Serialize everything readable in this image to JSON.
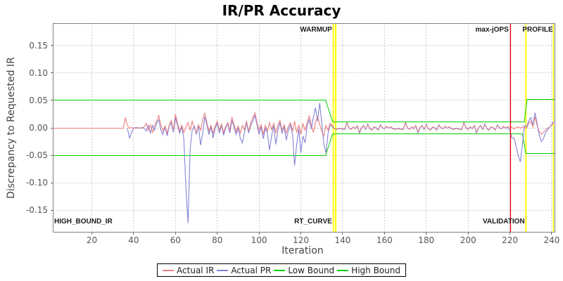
{
  "title": "IR/PR Accuracy",
  "chart_data": {
    "type": "line",
    "title": "IR/PR Accuracy",
    "xlabel": "Iteration",
    "ylabel": "Discrepancy to Requested IR",
    "xlim": [
      1.3,
      241.7
    ],
    "ylim": [
      -0.191,
      0.191
    ],
    "xticks": [
      20,
      40,
      60,
      80,
      100,
      120,
      140,
      160,
      180,
      200,
      220,
      240
    ],
    "yticks": [
      0.15,
      0.1,
      0.05,
      0.0,
      -0.05,
      -0.1,
      -0.15
    ],
    "grid": true,
    "grid_color": "#cccccc",
    "border_color": "#808080",
    "series": [
      {
        "name": "Actual IR",
        "color": "#f08080",
        "x_start": 1,
        "step": 1,
        "values": [
          0,
          0,
          0,
          0,
          0,
          0,
          0,
          0,
          0,
          0,
          0,
          0,
          0,
          0,
          0,
          0,
          0,
          0,
          0,
          0,
          0,
          0,
          0,
          0,
          0,
          0,
          0,
          0,
          0,
          0,
          0,
          0,
          0,
          0,
          0,
          0.018,
          0.004,
          0,
          0.001,
          -0.001,
          0,
          0.001,
          -0.001,
          0,
          0.002,
          0.008,
          -0.004,
          0.006,
          -0.008,
          0.004,
          0.012,
          0.022,
          0.006,
          -0.006,
          0.003,
          -0.009,
          0.005,
          0.014,
          -0.004,
          0.025,
          0.008,
          -0.006,
          0.004,
          -0.008,
          0.002,
          0.01,
          -0.005,
          0.012,
          0,
          -0.008,
          0.006,
          -0.004,
          0.015,
          0.028,
          0.01,
          -0.006,
          0.004,
          -0.01,
          0.003,
          0.012,
          -0.005,
          0.007,
          -0.008,
          0.002,
          0.01,
          -0.004,
          0.02,
          0.006,
          -0.007,
          0.003,
          -0.01,
          0.005,
          -0.003,
          0.012,
          -0.006,
          0.008,
          0.018,
          0.028,
          0.01,
          -0.005,
          0.006,
          -0.012,
          0.004,
          -0.006,
          0.01,
          -0.003,
          0.008,
          -0.009,
          0.004,
          0.014,
          -0.004,
          0.006,
          -0.01,
          0.002,
          0.009,
          -0.006,
          0.012,
          -0.008,
          0.005,
          -0.012,
          0.008,
          -0.004,
          0.01,
          0.022,
          0.004,
          -0.008,
          0.01,
          0.02,
          0.006,
          -0.006,
          -0.015,
          0.004,
          -0.005,
          0.008,
          0.004,
          -0.002,
          -0.002,
          -0.002,
          -0.001,
          -0.003,
          -0.002,
          0.009,
          0.001,
          -0.003,
          0.002,
          -0.002,
          0.004,
          -0.008,
          0.001,
          0.003,
          -0.002,
          0.006,
          -0.001,
          -0.004,
          0.002,
          0,
          -0.003,
          0.005,
          0.001,
          -0.002,
          0.003,
          -0.001,
          0.002,
          -0.002,
          -0.002,
          -0.002,
          -0.001,
          -0.003,
          -0.002,
          0.009,
          0.001,
          -0.003,
          0.002,
          -0.002,
          0.004,
          -0.008,
          0.001,
          0.003,
          -0.002,
          0.006,
          -0.001,
          -0.004,
          0.002,
          0,
          -0.003,
          0.005,
          0.001,
          -0.002,
          0.003,
          -0.001,
          0.002,
          -0.002,
          -0.002,
          -0.002,
          -0.001,
          -0.003,
          -0.002,
          0.009,
          0.001,
          -0.003,
          0.002,
          -0.002,
          0.004,
          -0.008,
          0.001,
          0.003,
          -0.002,
          0.006,
          -0.001,
          -0.004,
          0.002,
          0,
          -0.003,
          0.005,
          0.001,
          -0.002,
          0.003,
          -0.001,
          0.002,
          0.002,
          0.001,
          -0.002,
          0.001,
          0.002,
          -0.001,
          0.002,
          0.001,
          0,
          0.008,
          0.012,
          0.002,
          0.02,
          0.004,
          -0.006,
          -0.012,
          -0.008,
          -0.004,
          0,
          0.002,
          0.004,
          0.01
        ]
      },
      {
        "name": "Actual PR",
        "color": "#8080d8",
        "x_start": 1,
        "step": 1,
        "values": [
          null,
          null,
          null,
          null,
          null,
          null,
          null,
          null,
          null,
          null,
          null,
          null,
          null,
          null,
          null,
          null,
          null,
          null,
          null,
          null,
          null,
          null,
          null,
          null,
          null,
          null,
          null,
          null,
          null,
          null,
          null,
          null,
          null,
          null,
          null,
          null,
          0,
          -0.019,
          -0.008,
          0,
          0.001,
          -0.001,
          0,
          0.001,
          0,
          -0.006,
          0.005,
          -0.01,
          0.004,
          -0.004,
          0.008,
          0.015,
          -0.004,
          -0.012,
          0.002,
          -0.015,
          0.003,
          0.01,
          -0.008,
          0.018,
          0.004,
          -0.01,
          0.002,
          -0.02,
          -0.11,
          -0.174,
          -0.04,
          -0.004,
          0.003,
          -0.012,
          0.004,
          -0.032,
          -0.01,
          0.02,
          0.006,
          -0.012,
          0.002,
          -0.018,
          0,
          0.008,
          -0.01,
          0.004,
          -0.014,
          0,
          0.008,
          -0.01,
          0.014,
          0.002,
          -0.012,
          0,
          -0.018,
          -0.028,
          -0.008,
          0.01,
          -0.01,
          0.004,
          0.012,
          0.022,
          0.006,
          -0.012,
          0.002,
          -0.02,
          0,
          -0.01,
          -0.04,
          -0.015,
          0.004,
          -0.03,
          -0.005,
          0.01,
          -0.01,
          0.002,
          -0.022,
          -0.004,
          0.006,
          -0.012,
          -0.068,
          -0.03,
          -0.002,
          -0.045,
          -0.015,
          -0.028,
          0.004,
          0.015,
          -0.002,
          0.02,
          0.036,
          0.012,
          0.046,
          0.008,
          -0.03,
          -0.046,
          -0.01,
          0.006,
          0.002,
          -0.001,
          -0.003,
          -0.001,
          -0.002,
          -0.002,
          -0.003,
          0.01,
          0,
          -0.002,
          0.001,
          -0.001,
          0.003,
          -0.009,
          0,
          0.004,
          -0.003,
          0.007,
          -0.002,
          -0.003,
          0.001,
          0.001,
          -0.004,
          0.006,
          0,
          -0.001,
          0.002,
          0,
          0.001,
          -0.001,
          -0.003,
          -0.001,
          -0.002,
          -0.002,
          -0.003,
          0.01,
          0,
          -0.002,
          0.001,
          -0.001,
          0.003,
          -0.009,
          0,
          0.004,
          -0.003,
          0.007,
          -0.002,
          -0.003,
          0.001,
          0.001,
          -0.004,
          0.006,
          0,
          -0.001,
          0.002,
          0,
          0.001,
          -0.001,
          -0.003,
          -0.001,
          -0.002,
          -0.002,
          -0.003,
          0.01,
          0,
          -0.002,
          0.001,
          -0.001,
          0.003,
          -0.009,
          0,
          0.004,
          -0.003,
          0.007,
          -0.002,
          -0.003,
          0.001,
          0.001,
          -0.004,
          0.006,
          0,
          -0.001,
          0.002,
          0,
          0.001,
          -0.004,
          -0.018,
          -0.019,
          -0.034,
          -0.05,
          -0.062,
          -0.03,
          0.005,
          0.002,
          0.012,
          0.018,
          0.004,
          0.028,
          0.008,
          -0.012,
          -0.025,
          -0.02,
          -0.01,
          -0.004,
          0.002,
          0.006,
          0.012
        ]
      },
      {
        "name": "Low Bound",
        "color": "#00d000",
        "points": [
          [
            1.3,
            -0.05
          ],
          [
            131.8,
            -0.05
          ],
          [
            135.2,
            -0.0115
          ],
          [
            226.0,
            -0.0115
          ],
          [
            227.6,
            -0.047
          ],
          [
            241.7,
            -0.047
          ]
        ]
      },
      {
        "name": "High Bound",
        "color": "#00d000",
        "points": [
          [
            1.3,
            0.05
          ],
          [
            131.8,
            0.05
          ],
          [
            135.2,
            0.011
          ],
          [
            226.9,
            0.011
          ],
          [
            228.2,
            0.052
          ],
          [
            241.7,
            0.052
          ]
        ]
      }
    ],
    "markers": {
      "vbands": [
        {
          "name": "warmup-band-1",
          "x0": 135.2,
          "x1": 135.8,
          "color": "#ffff00"
        },
        {
          "name": "warmup-band-2",
          "x0": 136.3,
          "x1": 137.0,
          "color": "#ffff00"
        },
        {
          "name": "profile-band",
          "x0": 227.35,
          "x1": 227.95,
          "color": "#ffff00"
        },
        {
          "name": "right-edge-band",
          "x0": 240.55,
          "x1": 241.05,
          "color": "#ffff00"
        }
      ],
      "vlines": [
        {
          "name": "max-jops-line",
          "x": 220.3,
          "color": "#ee0000",
          "width": 1.3
        }
      ]
    },
    "annotations": [
      {
        "text": "WARMUP",
        "x": 134.9,
        "valign": "top",
        "align": "end"
      },
      {
        "text": "max-jOPS",
        "x": 219.4,
        "valign": "top",
        "align": "end"
      },
      {
        "text": "PROFILE",
        "x": 240.6,
        "valign": "top",
        "align": "end"
      },
      {
        "text": "HIGH_BOUND_IR",
        "x": 1.97,
        "valign": "bottom",
        "align": "start"
      },
      {
        "text": "RT_CURVE",
        "x": 134.9,
        "valign": "bottom",
        "align": "end"
      },
      {
        "text": "VALIDATION",
        "x": 227.1,
        "valign": "bottom",
        "align": "end"
      }
    ],
    "legend": {
      "position": "bottom",
      "entries": [
        {
          "label": "Actual IR",
          "color": "#f08080"
        },
        {
          "label": "Actual PR",
          "color": "#8080d8"
        },
        {
          "label": "Low Bound",
          "color": "#00d000"
        },
        {
          "label": "High Bound",
          "color": "#00d000"
        }
      ]
    }
  }
}
